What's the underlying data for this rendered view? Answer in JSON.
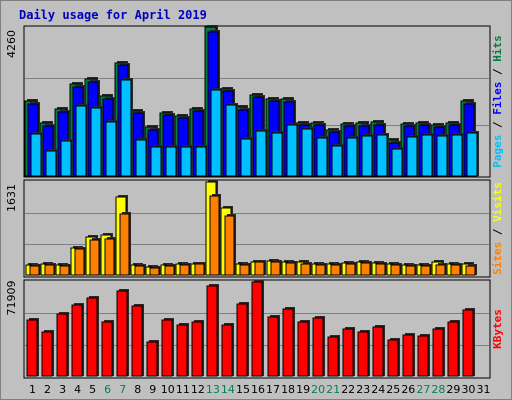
{
  "title": "Daily usage for April 2019",
  "colors": {
    "title": "#0000c0",
    "hits": "#008040",
    "files": "#0000ff",
    "pages": "#00c0ff",
    "visits": "#ffff00",
    "sites": "#ff8000",
    "kbytes": "#ff0000",
    "weekend_label": "#00805c",
    "panel_bg": "#c0c0c0",
    "gridline": "#808080"
  },
  "chart_data": [
    {
      "type": "bar",
      "panel": "hits-files-pages",
      "categories": [
        "1",
        "2",
        "3",
        "4",
        "5",
        "6",
        "7",
        "8",
        "9",
        "10",
        "11",
        "12",
        "13",
        "14",
        "15",
        "16",
        "17",
        "18",
        "19",
        "20",
        "21",
        "22",
        "23",
        "24",
        "25",
        "26",
        "27",
        "28",
        "29",
        "30",
        "31"
      ],
      "weekend_days": [
        "6",
        "7",
        "13",
        "14",
        "20",
        "21",
        "27",
        "28"
      ],
      "ymax_label": "4260",
      "ylim": [
        0,
        4260
      ],
      "side_labels": [
        "Pages",
        "Files",
        "Hits"
      ],
      "series": [
        {
          "name": "Hits",
          "color": "#008040",
          "values": [
            2130,
            1510,
            1920,
            2620,
            2760,
            2280,
            3240,
            1860,
            1390,
            1800,
            1720,
            1920,
            4260,
            2500,
            1960,
            2320,
            2200,
            2190,
            1510,
            1510,
            1320,
            1500,
            1510,
            1530,
            1020,
            1480,
            1510,
            1450,
            1510,
            2130,
            null
          ]
        },
        {
          "name": "Files",
          "color": "#0000ff",
          "values": [
            2070,
            1440,
            1840,
            2550,
            2680,
            2200,
            3160,
            1800,
            1320,
            1750,
            1650,
            1850,
            4120,
            2420,
            1890,
            2250,
            2130,
            2120,
            1460,
            1450,
            1250,
            1440,
            1440,
            1460,
            950,
            1420,
            1450,
            1390,
            1450,
            2070,
            null
          ]
        },
        {
          "name": "Pages",
          "color": "#00c0ff",
          "values": [
            1200,
            720,
            1010,
            2010,
            1940,
            1530,
            2740,
            1040,
            820,
            830,
            830,
            840,
            2470,
            2030,
            1060,
            1290,
            1240,
            1470,
            1340,
            1080,
            860,
            1100,
            1130,
            1160,
            760,
            1120,
            1160,
            1150,
            1160,
            1230,
            null
          ]
        }
      ]
    },
    {
      "type": "bar",
      "panel": "visits-sites",
      "categories": [
        "1",
        "2",
        "3",
        "4",
        "5",
        "6",
        "7",
        "8",
        "9",
        "10",
        "11",
        "12",
        "13",
        "14",
        "15",
        "16",
        "17",
        "18",
        "19",
        "20",
        "21",
        "22",
        "23",
        "24",
        "25",
        "26",
        "27",
        "28",
        "29",
        "30",
        "31"
      ],
      "ymax_label": "1631",
      "ylim": [
        0,
        1631
      ],
      "side_labels": [
        "Sites",
        "Visits"
      ],
      "series": [
        {
          "name": "Visits",
          "color": "#ffff00",
          "values": [
            170,
            190,
            170,
            480,
            660,
            700,
            1370,
            170,
            140,
            180,
            190,
            200,
            1631,
            1180,
            190,
            230,
            240,
            230,
            220,
            190,
            190,
            210,
            230,
            210,
            190,
            180,
            180,
            220,
            200,
            190,
            null
          ]
        },
        {
          "name": "Sites",
          "color": "#ff8000",
          "values": [
            160,
            170,
            160,
            460,
            620,
            630,
            1070,
            160,
            130,
            160,
            170,
            190,
            1380,
            1030,
            180,
            220,
            220,
            210,
            200,
            170,
            170,
            200,
            210,
            190,
            170,
            160,
            160,
            180,
            170,
            160,
            null
          ]
        }
      ]
    },
    {
      "type": "bar",
      "panel": "kbytes",
      "categories": [
        "1",
        "2",
        "3",
        "4",
        "5",
        "6",
        "7",
        "8",
        "9",
        "10",
        "11",
        "12",
        "13",
        "14",
        "15",
        "16",
        "17",
        "18",
        "19",
        "20",
        "21",
        "22",
        "23",
        "24",
        "25",
        "26",
        "27",
        "28",
        "29",
        "30",
        "31"
      ],
      "ymax_label": "71909",
      "ylim": [
        0,
        71909
      ],
      "side_labels": [
        "KBytes"
      ],
      "series": [
        {
          "name": "KBytes",
          "color": "#ff0000",
          "values": [
            42500,
            33900,
            47200,
            54000,
            59300,
            41600,
            64700,
            53900,
            26300,
            42900,
            39000,
            41600,
            68600,
            38700,
            55400,
            71909,
            45000,
            51300,
            41600,
            44700,
            30100,
            35600,
            34000,
            37800,
            27200,
            31200,
            30500,
            36000,
            41000,
            50500,
            null
          ]
        }
      ]
    }
  ]
}
